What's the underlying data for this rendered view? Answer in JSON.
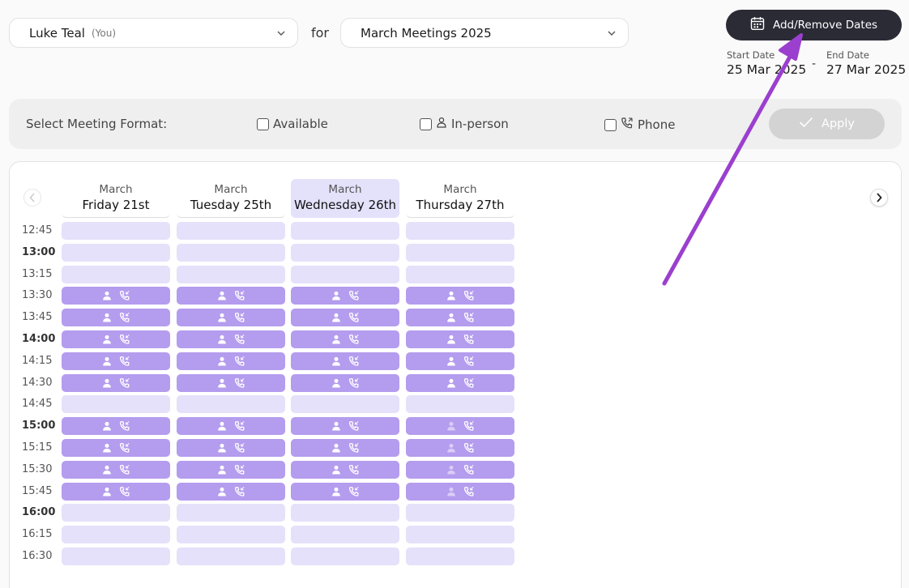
{
  "user_select": {
    "name": "Luke Teal",
    "suffix": "(You)"
  },
  "for_label": "for",
  "meeting_select": {
    "value": "March Meetings 2025"
  },
  "add_remove_button": {
    "label": "Add/Remove Dates"
  },
  "dates": {
    "start_label": "Start Date",
    "start_value": "25 Mar 2025",
    "separator": "-",
    "end_label": "End Date",
    "end_value": "27 Mar 2025"
  },
  "format_bar": {
    "title": "Select Meeting Format:",
    "options": [
      {
        "label": "Available",
        "icon": "none"
      },
      {
        "label": "In-person",
        "icon": "person-icon"
      },
      {
        "label": "Phone",
        "icon": "phone-icon"
      }
    ],
    "apply_label": "Apply"
  },
  "calendar": {
    "days": [
      {
        "month": "March",
        "day": "Friday 21st",
        "active": false
      },
      {
        "month": "March",
        "day": "Tuesday 25th",
        "active": false
      },
      {
        "month": "March",
        "day": "Wednesday 26th",
        "active": true
      },
      {
        "month": "March",
        "day": "Thursday 27th",
        "active": false
      }
    ],
    "times": [
      "12:45",
      "13:00",
      "13:15",
      "13:30",
      "13:45",
      "14:00",
      "14:15",
      "14:30",
      "14:45",
      "15:00",
      "15:15",
      "15:30",
      "15:45",
      "16:00",
      "16:15",
      "16:30"
    ],
    "bold_times": [
      "13:00",
      "14:00",
      "15:00",
      "16:00"
    ],
    "booked_times": [
      "13:30",
      "13:45",
      "14:00",
      "14:15",
      "14:30",
      "15:00",
      "15:15",
      "15:30",
      "15:45"
    ],
    "faded_person_day": 3,
    "faded_person_times": [
      "15:00",
      "15:15",
      "15:30",
      "15:45"
    ]
  },
  "colors": {
    "accent_dark": "#2b2b36",
    "slot_available": "#e5e1fa",
    "slot_booked": "#b49cee",
    "annotation_arrow": "#9b3fcf"
  }
}
